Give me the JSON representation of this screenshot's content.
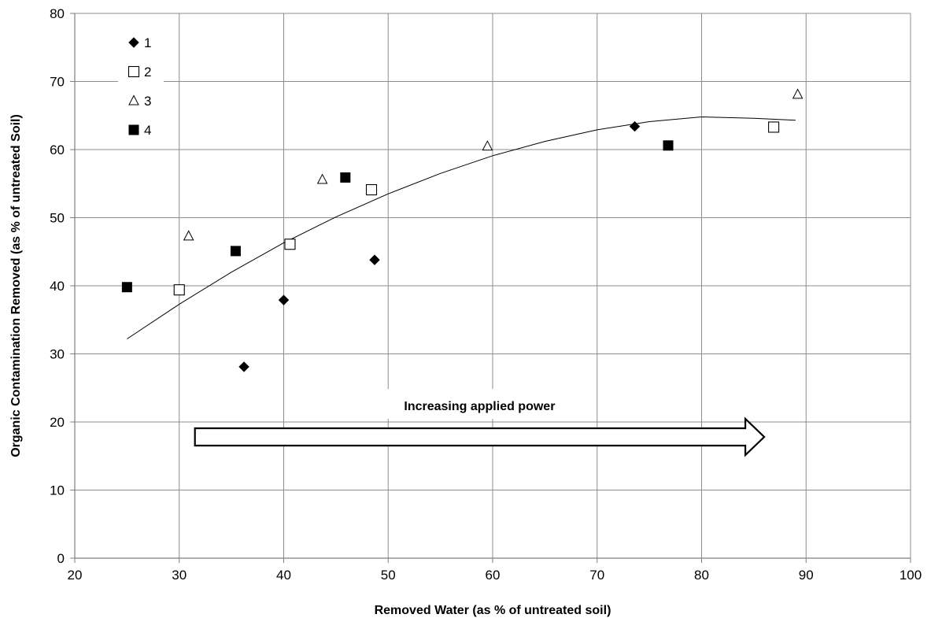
{
  "chart_data": {
    "type": "scatter",
    "xlabel": "Removed Water (as % of untreated soil)",
    "ylabel": "Organic Contamination Removed  (as % of untreated Soil)",
    "xlim": [
      20,
      100
    ],
    "ylim": [
      0,
      80
    ],
    "x_ticks": [
      "20",
      "30",
      "40",
      "50",
      "60",
      "70",
      "80",
      "90",
      "100"
    ],
    "y_ticks": [
      "0",
      "10",
      "20",
      "30",
      "40",
      "50",
      "60",
      "70",
      "80"
    ],
    "grid": true,
    "legend_position": "top-left",
    "series": [
      {
        "name": "1",
        "marker": "diamond-filled",
        "x": [
          36.2,
          40.0,
          48.7,
          73.6
        ],
        "y": [
          28.1,
          37.9,
          43.8,
          63.4
        ]
      },
      {
        "name": "2",
        "marker": "square-open",
        "x": [
          30.0,
          40.6,
          48.4,
          86.9
        ],
        "y": [
          39.4,
          46.1,
          54.1,
          63.3
        ]
      },
      {
        "name": "3",
        "marker": "triangle-open",
        "x": [
          30.9,
          43.7,
          59.5,
          89.2
        ],
        "y": [
          47.3,
          55.6,
          60.5,
          68.1
        ]
      },
      {
        "name": "4",
        "marker": "square-filled",
        "x": [
          25.0,
          35.4,
          45.9,
          76.8
        ],
        "y": [
          39.8,
          45.1,
          55.9,
          60.6
        ]
      }
    ],
    "trendline": {
      "type": "polynomial",
      "x": [
        25,
        30,
        35,
        40,
        45,
        50,
        55,
        60,
        65,
        70,
        75,
        80,
        85,
        89
      ],
      "y": [
        32.2,
        37.3,
        42.0,
        46.3,
        50.1,
        53.5,
        56.5,
        59.1,
        61.2,
        62.9,
        64.1,
        64.8,
        64.6,
        64.3
      ]
    },
    "annotation": {
      "text": "Increasing applied power",
      "arrow_from_x": 31.5,
      "arrow_to_x": 86.0,
      "arrow_y": 17.8
    }
  }
}
